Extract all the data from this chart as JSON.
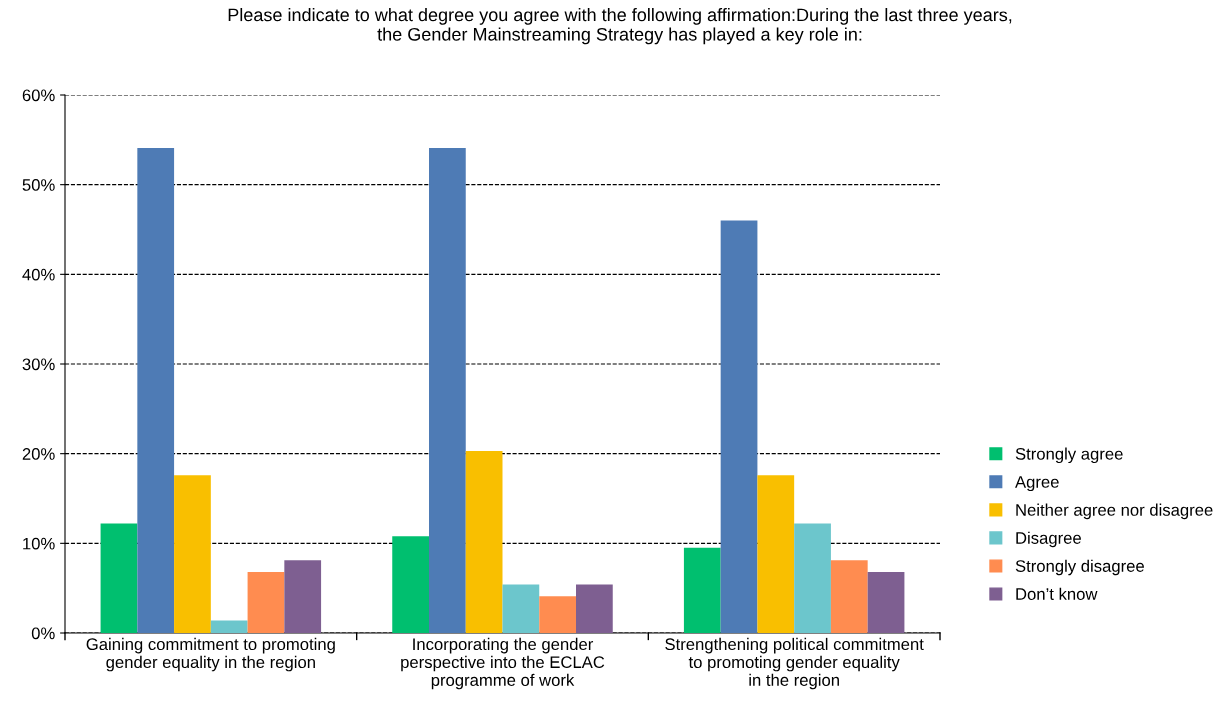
{
  "chart_data": {
    "type": "bar",
    "title": "Please indicate to what degree you agree with the following affirmation:During the last three years,\nthe Gender Mainstreaming Strategy has played a key role in:",
    "categories": [
      "Gaining commitment to promoting\ngender equality in the region",
      "Incorporating the gender\nperspective into the ECLAC\nprogramme of work",
      "Strengthening political commitment\nto promoting gender equality\nin the region"
    ],
    "series": [
      {
        "name": "Strongly agree",
        "color": "#00bf6f",
        "values": [
          12.2,
          10.8,
          9.5
        ]
      },
      {
        "name": "Agree",
        "color": "#4e7bb5",
        "values": [
          54.1,
          54.1,
          46.0
        ]
      },
      {
        "name": "Neither agree nor disagree",
        "color": "#f9bf00",
        "values": [
          17.6,
          20.3,
          17.6
        ]
      },
      {
        "name": "Disagree",
        "color": "#6cc6cc",
        "values": [
          1.4,
          5.4,
          12.2
        ]
      },
      {
        "name": "Strongly disagree",
        "color": "#ff8c50",
        "values": [
          6.8,
          4.1,
          8.1
        ]
      },
      {
        "name": "Don’t know",
        "color": "#7e5f91",
        "values": [
          8.1,
          5.4,
          6.8
        ]
      }
    ],
    "ylim": [
      0,
      60
    ],
    "yticks": [
      {
        "value": 0,
        "label": "0%"
      },
      {
        "value": 10,
        "label": "10%"
      },
      {
        "value": 20,
        "label": "20%"
      },
      {
        "value": 30,
        "label": "30%"
      },
      {
        "value": 40,
        "label": "40%"
      },
      {
        "value": 50,
        "label": "50%"
      },
      {
        "value": 60,
        "label": "60%"
      }
    ],
    "grid": "y",
    "legend": "right"
  }
}
